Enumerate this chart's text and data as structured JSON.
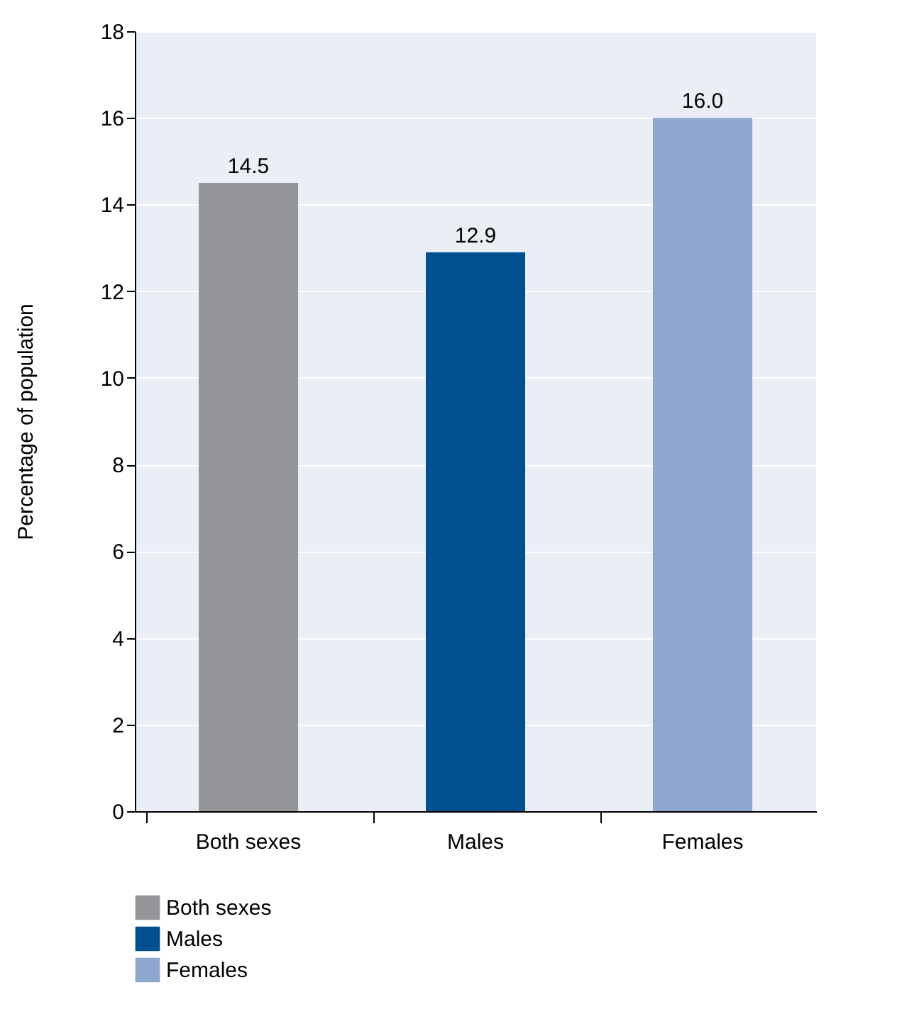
{
  "chart_data": {
    "type": "bar",
    "ylabel": "Percentage of population",
    "categories": [
      "Both sexes",
      "Males",
      "Females"
    ],
    "series": [
      {
        "name": "Both sexes",
        "color": "#939598",
        "values": [
          14.5,
          null,
          null
        ],
        "value_labels": [
          "14.5",
          null,
          null
        ]
      },
      {
        "name": "Males",
        "color": "#004f91",
        "values": [
          null,
          12.9,
          null
        ],
        "value_labels": [
          null,
          "12.9",
          null
        ]
      },
      {
        "name": "Females",
        "color": "#8ea7cf",
        "values": [
          null,
          null,
          16.0
        ],
        "value_labels": [
          null,
          null,
          "16.0"
        ]
      }
    ],
    "ylim": [
      0,
      18
    ],
    "yticks": [
      0,
      2,
      4,
      6,
      8,
      10,
      12,
      14,
      16,
      18
    ],
    "grid": "y",
    "legend": "bottom left"
  }
}
